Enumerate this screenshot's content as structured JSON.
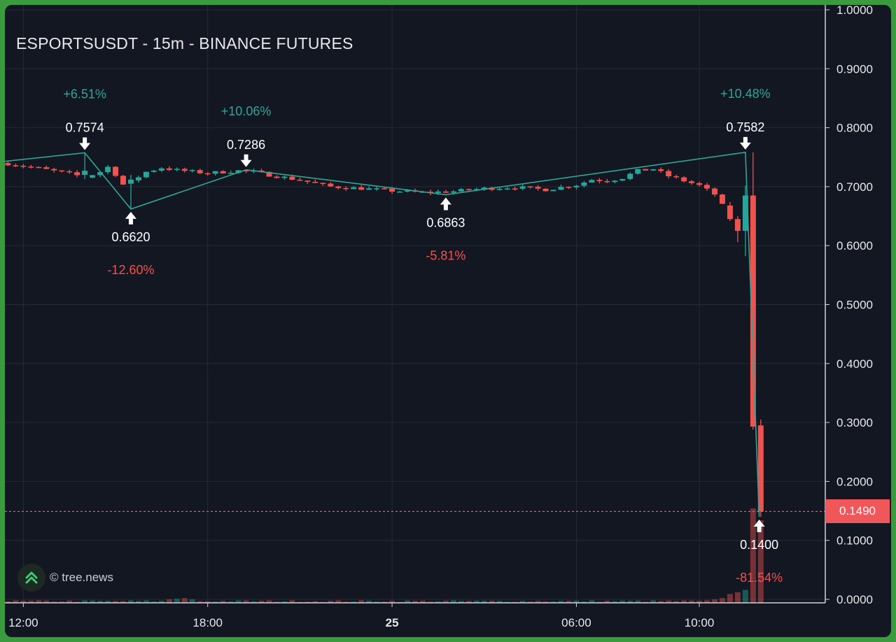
{
  "header": {
    "title": "ESPORTSUSDT - 15m - BINANCE FUTURES"
  },
  "watermark": {
    "text": "© tree.news",
    "icon": "chevrons-up-icon"
  },
  "current_price": {
    "label": "0.1490",
    "value": 0.149,
    "color": "#f0575a"
  },
  "colors": {
    "background": "#131722",
    "grid": "#242a36",
    "up": "#26a69a",
    "down": "#ef5350",
    "zigzag": "#2fa596",
    "text": "#e8e8ea",
    "frame": "#3a9a3e"
  },
  "chart_data": {
    "type": "candlestick",
    "title": "ESPORTSUSDT - 15m - BINANCE FUTURES",
    "ylim": [
      0,
      1.0
    ],
    "y_ticks": [
      {
        "value": 1.0,
        "label": "1.0000"
      },
      {
        "value": 0.9,
        "label": "0.9000"
      },
      {
        "value": 0.8,
        "label": "0.8000"
      },
      {
        "value": 0.7,
        "label": "0.7000"
      },
      {
        "value": 0.6,
        "label": "0.6000"
      },
      {
        "value": 0.5,
        "label": "0.5000"
      },
      {
        "value": 0.4,
        "label": "0.4000"
      },
      {
        "value": 0.3,
        "label": "0.3000"
      },
      {
        "value": 0.2,
        "label": "0.2000"
      },
      {
        "value": 0.1,
        "label": "0.1000"
      },
      {
        "value": 0.0,
        "label": "0.0000"
      }
    ],
    "x_ticks": [
      {
        "t": 0,
        "label": "12:00",
        "bold": false
      },
      {
        "t": 6,
        "label": "18:00",
        "bold": false
      },
      {
        "t": 12,
        "label": "25",
        "bold": true
      },
      {
        "t": 18,
        "label": "06:00",
        "bold": false
      },
      {
        "t": 22,
        "label": "10:00",
        "bold": false
      }
    ],
    "x_range_hours": [
      -0.6,
      26.1
    ],
    "grid": true,
    "zigzag": [
      {
        "t": -0.6,
        "price": 0.743
      },
      {
        "t": 2.0,
        "price": 0.7574
      },
      {
        "t": 3.5,
        "price": 0.662
      },
      {
        "t": 7.25,
        "price": 0.7286
      },
      {
        "t": 13.75,
        "price": 0.6863
      },
      {
        "t": 23.5,
        "price": 0.7582
      },
      {
        "t": 23.95,
        "price": 0.14
      }
    ],
    "pivots": [
      {
        "t": 2.0,
        "price": 0.7574,
        "label": "0.7574",
        "pct": "+6.51%",
        "type": "high"
      },
      {
        "t": 3.5,
        "price": 0.662,
        "label": "0.6620",
        "pct": "-12.60%",
        "type": "low"
      },
      {
        "t": 7.25,
        "price": 0.7286,
        "label": "0.7286",
        "pct": "+10.06%",
        "type": "high"
      },
      {
        "t": 13.75,
        "price": 0.6863,
        "label": "0.6863",
        "pct": "-5.81%",
        "type": "low"
      },
      {
        "t": 23.5,
        "price": 0.7582,
        "label": "0.7582",
        "pct": "+10.48%",
        "type": "high"
      },
      {
        "t": 23.95,
        "price": 0.14,
        "label": "0.1400",
        "pct": "-81.54%",
        "type": "low"
      }
    ],
    "keyframes": [
      [
        -0.6,
        0.74
      ],
      [
        0.5,
        0.731
      ],
      [
        1.5,
        0.722
      ],
      [
        2.0,
        0.716
      ],
      [
        2.5,
        0.725
      ],
      [
        2.8,
        0.735
      ],
      [
        3.3,
        0.7
      ],
      [
        3.6,
        0.712
      ],
      [
        4.0,
        0.725
      ],
      [
        4.5,
        0.732
      ],
      [
        5.0,
        0.728
      ],
      [
        6.0,
        0.723
      ],
      [
        7.0,
        0.727
      ],
      [
        7.5,
        0.725
      ],
      [
        8.0,
        0.72
      ],
      [
        9.0,
        0.711
      ],
      [
        10.0,
        0.7
      ],
      [
        11.0,
        0.697
      ],
      [
        12.0,
        0.693
      ],
      [
        13.0,
        0.69
      ],
      [
        14.0,
        0.692
      ],
      [
        15.0,
        0.697
      ],
      [
        16.0,
        0.699
      ],
      [
        17.0,
        0.695
      ],
      [
        18.0,
        0.703
      ],
      [
        18.5,
        0.712
      ],
      [
        19.0,
        0.71
      ],
      [
        19.5,
        0.715
      ],
      [
        20.0,
        0.727
      ],
      [
        20.5,
        0.73
      ],
      [
        21.0,
        0.718
      ],
      [
        21.5,
        0.71
      ],
      [
        22.0,
        0.702
      ],
      [
        22.5,
        0.687
      ],
      [
        22.75,
        0.668
      ]
    ],
    "tail_candles": [
      {
        "t": 23.0,
        "o": 0.668,
        "h": 0.674,
        "l": 0.642,
        "c": 0.645
      },
      {
        "t": 23.25,
        "o": 0.645,
        "h": 0.65,
        "l": 0.606,
        "c": 0.625
      },
      {
        "t": 23.5,
        "o": 0.625,
        "h": 0.702,
        "l": 0.582,
        "c": 0.685
      },
      {
        "t": 23.75,
        "o": 0.685,
        "h": 0.758,
        "l": 0.288,
        "c": 0.293
      },
      {
        "t": 24.0,
        "o": 0.295,
        "h": 0.305,
        "l": 0.14,
        "c": 0.149
      }
    ],
    "spike_candles": [
      {
        "t": 2.0,
        "o": 0.72,
        "h": 0.757,
        "l": 0.713,
        "c": 0.727
      },
      {
        "t": 3.5,
        "o": 0.705,
        "h": 0.72,
        "l": 0.662,
        "c": 0.712
      }
    ],
    "volume": {
      "max": 0.165,
      "base": 0.003,
      "spikes": [
        {
          "t": 5.0,
          "v": 0.007
        },
        {
          "t": 5.25,
          "v": 0.008
        },
        {
          "t": 5.5,
          "v": 0.006
        },
        {
          "t": 4.75,
          "v": 0.006
        },
        {
          "t": 22.5,
          "v": 0.006
        },
        {
          "t": 22.75,
          "v": 0.008
        },
        {
          "t": 23.0,
          "v": 0.015
        },
        {
          "t": 23.25,
          "v": 0.018
        },
        {
          "t": 23.5,
          "v": 0.022
        },
        {
          "t": 23.75,
          "v": 0.16
        },
        {
          "t": 24.0,
          "v": 0.14
        }
      ]
    }
  }
}
